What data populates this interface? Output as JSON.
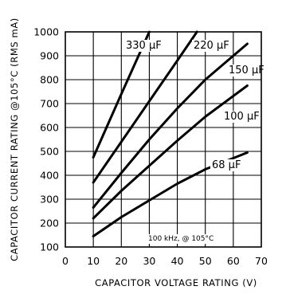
{
  "chart_data": {
    "type": "line",
    "title": "",
    "xlabel": "CAPACITOR VOLTAGE RATING (V)",
    "ylabel": "CAPACITOR CURRENT RATING @105°C (RMS mA)",
    "xlim": [
      0,
      70
    ],
    "ylim": [
      100,
      1000
    ],
    "xticks": [
      "0",
      "10",
      "20",
      "30",
      "40",
      "50",
      "60",
      "70"
    ],
    "yticks": [
      "100",
      "200",
      "300",
      "400",
      "500",
      "600",
      "700",
      "800",
      "900",
      "1000"
    ],
    "grid": true,
    "annotation": "100 kHz, @ 105°C",
    "series": [
      {
        "name": "330 µF",
        "x": [
          10,
          20,
          30
        ],
        "y": [
          475,
          740,
          1000
        ]
      },
      {
        "name": "220 µF",
        "x": [
          10,
          20,
          30,
          40,
          47
        ],
        "y": [
          370,
          540,
          710,
          880,
          1000
        ]
      },
      {
        "name": "150 µF",
        "x": [
          10,
          20,
          30,
          40,
          50,
          65
        ],
        "y": [
          265,
          410,
          550,
          680,
          800,
          950
        ]
      },
      {
        "name": "100 µF",
        "x": [
          10,
          20,
          30,
          40,
          50,
          65
        ],
        "y": [
          220,
          335,
          440,
          545,
          645,
          775
        ]
      },
      {
        "name": "68 µF",
        "x": [
          10,
          20,
          30,
          40,
          50,
          65
        ],
        "y": [
          145,
          225,
          295,
          365,
          425,
          495
        ]
      }
    ]
  }
}
